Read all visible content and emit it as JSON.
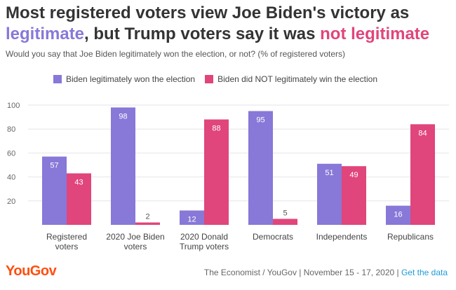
{
  "header": {
    "title_line1": "Most registered voters view Joe Biden's victory as",
    "title_line2_a": "legitimate",
    "title_line2_b": ", but Trump voters say it was ",
    "title_line2_c": "not legitimate",
    "subtitle": "Would you say that Joe Biden legitimately won the election, or not? (% of registered voters)"
  },
  "colors": {
    "biden_legit": "#8878d8",
    "not_legit": "#e0457b",
    "grid": "#e6e6e6",
    "axis_text": "#666666"
  },
  "chart_data": {
    "type": "bar",
    "categories": [
      [
        "Registered",
        "voters"
      ],
      [
        "2020 Joe Biden",
        "voters"
      ],
      [
        "2020 Donald",
        "Trump voters"
      ],
      [
        "Democrats"
      ],
      [
        "Independents"
      ],
      [
        "Republicans"
      ]
    ],
    "series": [
      {
        "name": "Biden legitimately won the election",
        "values": [
          57,
          98,
          12,
          95,
          51,
          16
        ]
      },
      {
        "name": "Biden did NOT legitimately win the election",
        "values": [
          43,
          2,
          88,
          5,
          49,
          84
        ]
      }
    ],
    "yticks": [
      20,
      40,
      60,
      80,
      100
    ],
    "ylim": [
      0,
      100
    ],
    "grid": true,
    "legend": "top-left",
    "title": "Most registered voters view Joe Biden's victory as legitimate, but Trump voters say it was not legitimate",
    "xlabel": "",
    "ylabel": ""
  },
  "footer": {
    "logo": "YouGov",
    "source": "The Economist / YouGov | November 15 - 17, 2020 | ",
    "link": "Get the data"
  }
}
